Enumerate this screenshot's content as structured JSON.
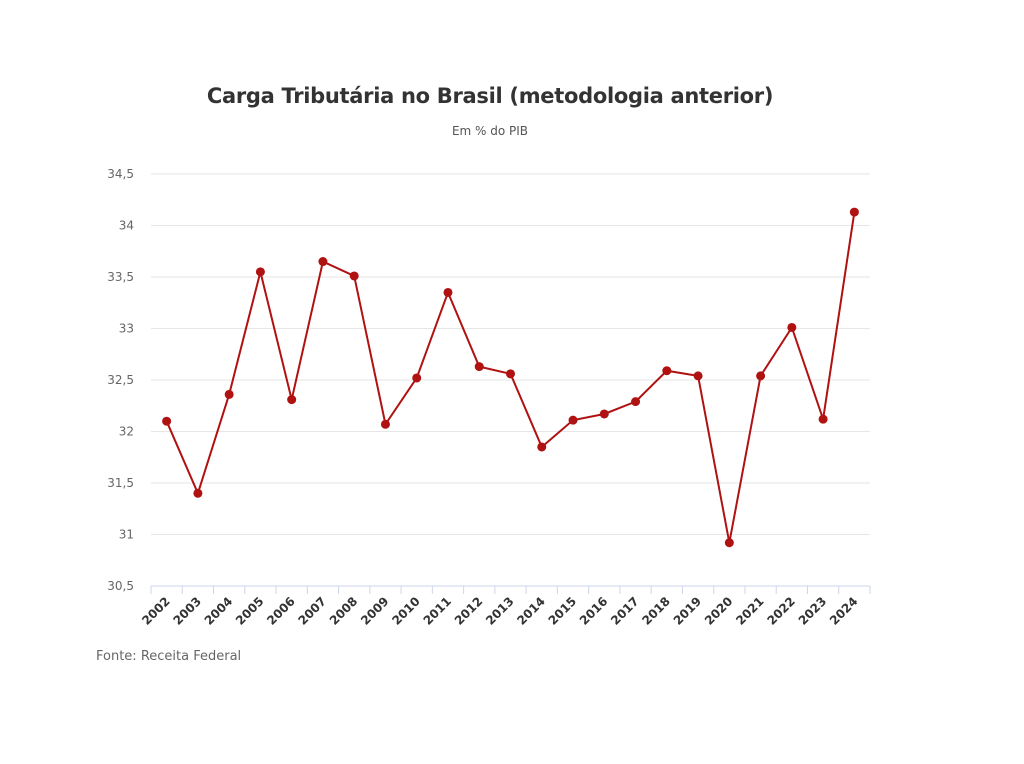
{
  "chart_data": {
    "type": "line",
    "title": "Carga Tributária no Brasil (metodologia anterior)",
    "subtitle": "Em % do PIB",
    "source": "Fonte: Receita Federal",
    "xlabel": "",
    "ylabel": "",
    "ylim": [
      30.5,
      34.5
    ],
    "yticks": [
      30.5,
      31,
      31.5,
      32,
      32.5,
      33,
      33.5,
      34,
      34.5
    ],
    "ytick_labels": [
      "30,5",
      "31",
      "31,5",
      "32",
      "32,5",
      "33",
      "33,5",
      "34",
      "34,5"
    ],
    "grid": true,
    "categories": [
      "2002",
      "2003",
      "2004",
      "2005",
      "2006",
      "2007",
      "2008",
      "2009",
      "2010",
      "2011",
      "2012",
      "2013",
      "2014",
      "2015",
      "2016",
      "2017",
      "2018",
      "2019",
      "2020",
      "2021",
      "2022",
      "2023",
      "2024"
    ],
    "series": [
      {
        "name": "Carga Tributária",
        "color": "#b01111",
        "values": [
          32.1,
          31.4,
          32.36,
          33.55,
          32.31,
          33.65,
          33.51,
          32.07,
          32.52,
          33.35,
          32.63,
          32.56,
          31.85,
          32.11,
          32.17,
          32.29,
          32.59,
          32.54,
          30.92,
          32.54,
          33.01,
          32.12,
          34.13
        ]
      }
    ]
  }
}
